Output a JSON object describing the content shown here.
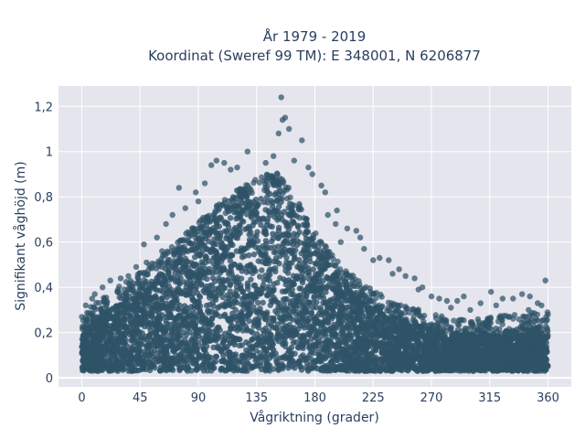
{
  "chart_data": {
    "type": "scatter",
    "title": "År 1979 - 2019",
    "subtitle": "Koordinat (Sweref 99 TM): E 348001, N 6206877",
    "xlabel": "Vågriktning (grader)",
    "ylabel": "Signifikant våghöjd (m)",
    "xlim": [
      -18,
      378
    ],
    "ylim": [
      -0.04,
      1.29
    ],
    "x_ticks": [
      0,
      45,
      90,
      135,
      180,
      225,
      270,
      315,
      360
    ],
    "x_tick_labels": [
      "0",
      "45",
      "90",
      "135",
      "180",
      "225",
      "270",
      "315",
      "360"
    ],
    "y_ticks": [
      0,
      0.2,
      0.4,
      0.6,
      0.8,
      1,
      1.2
    ],
    "y_tick_labels": [
      "0",
      "0,2",
      "0,4",
      "0,6",
      "0,8",
      "1",
      "1,2"
    ],
    "grid": true,
    "marker_color": "#2e5266",
    "background_color": "#e5e5ee",
    "density_envelope": {
      "x": [
        0,
        10,
        20,
        30,
        45,
        60,
        75,
        90,
        105,
        120,
        135,
        150,
        160,
        170,
        180,
        195,
        210,
        225,
        240,
        255,
        270,
        285,
        300,
        315,
        330,
        345,
        360
      ],
      "lower": [
        0.06,
        0.06,
        0.06,
        0.06,
        0.06,
        0.06,
        0.06,
        0.06,
        0.06,
        0.06,
        0.06,
        0.06,
        0.06,
        0.06,
        0.06,
        0.06,
        0.06,
        0.06,
        0.06,
        0.06,
        0.06,
        0.06,
        0.06,
        0.06,
        0.06,
        0.06,
        0.06
      ],
      "upper": [
        0.22,
        0.26,
        0.3,
        0.34,
        0.4,
        0.46,
        0.54,
        0.62,
        0.7,
        0.76,
        0.82,
        0.84,
        0.78,
        0.68,
        0.58,
        0.46,
        0.38,
        0.32,
        0.27,
        0.24,
        0.22,
        0.2,
        0.19,
        0.2,
        0.21,
        0.22,
        0.22
      ]
    },
    "outliers": [
      {
        "x": 154,
        "y": 1.24
      },
      {
        "x": 155,
        "y": 1.14
      },
      {
        "x": 157,
        "y": 1.15
      },
      {
        "x": 152,
        "y": 1.08
      },
      {
        "x": 160,
        "y": 1.1
      },
      {
        "x": 170,
        "y": 1.05
      },
      {
        "x": 128,
        "y": 1.0
      },
      {
        "x": 104,
        "y": 0.96
      },
      {
        "x": 110,
        "y": 0.95
      },
      {
        "x": 100,
        "y": 0.94
      },
      {
        "x": 120,
        "y": 0.93
      },
      {
        "x": 142,
        "y": 0.95
      },
      {
        "x": 164,
        "y": 0.96
      },
      {
        "x": 178,
        "y": 0.9
      },
      {
        "x": 185,
        "y": 0.85
      },
      {
        "x": 75,
        "y": 0.84
      },
      {
        "x": 88,
        "y": 0.82
      },
      {
        "x": 95,
        "y": 0.86
      },
      {
        "x": 80,
        "y": 0.75
      },
      {
        "x": 70,
        "y": 0.72
      },
      {
        "x": 65,
        "y": 0.68
      },
      {
        "x": 188,
        "y": 0.82
      },
      {
        "x": 190,
        "y": 0.72
      },
      {
        "x": 196,
        "y": 0.68
      },
      {
        "x": 205,
        "y": 0.66
      },
      {
        "x": 212,
        "y": 0.65
      },
      {
        "x": 218,
        "y": 0.57
      },
      {
        "x": 200,
        "y": 0.6
      },
      {
        "x": 230,
        "y": 0.53
      },
      {
        "x": 237,
        "y": 0.52
      },
      {
        "x": 245,
        "y": 0.48
      },
      {
        "x": 250,
        "y": 0.45
      },
      {
        "x": 257,
        "y": 0.44
      },
      {
        "x": 263,
        "y": 0.4
      },
      {
        "x": 48,
        "y": 0.59
      },
      {
        "x": 50,
        "y": 0.51
      },
      {
        "x": 42,
        "y": 0.49
      },
      {
        "x": 30,
        "y": 0.44
      },
      {
        "x": 22,
        "y": 0.43
      },
      {
        "x": 10,
        "y": 0.37
      },
      {
        "x": 3,
        "y": 0.32
      },
      {
        "x": 8,
        "y": 0.35
      },
      {
        "x": 58,
        "y": 0.62
      },
      {
        "x": 62,
        "y": 0.56
      },
      {
        "x": 270,
        "y": 0.36
      },
      {
        "x": 276,
        "y": 0.35
      },
      {
        "x": 282,
        "y": 0.34
      },
      {
        "x": 295,
        "y": 0.36
      },
      {
        "x": 308,
        "y": 0.33
      },
      {
        "x": 316,
        "y": 0.38
      },
      {
        "x": 325,
        "y": 0.35
      },
      {
        "x": 333,
        "y": 0.35
      },
      {
        "x": 340,
        "y": 0.37
      },
      {
        "x": 346,
        "y": 0.36
      },
      {
        "x": 352,
        "y": 0.33
      },
      {
        "x": 358,
        "y": 0.43
      },
      {
        "x": 355,
        "y": 0.32
      },
      {
        "x": 300,
        "y": 0.3
      },
      {
        "x": 285,
        "y": 0.31
      },
      {
        "x": 240,
        "y": 0.46
      },
      {
        "x": 225,
        "y": 0.52
      },
      {
        "x": 215,
        "y": 0.62
      },
      {
        "x": 197,
        "y": 0.74
      },
      {
        "x": 175,
        "y": 0.93
      },
      {
        "x": 148,
        "y": 0.98
      },
      {
        "x": 115,
        "y": 0.92
      },
      {
        "x": 90,
        "y": 0.78
      },
      {
        "x": 36,
        "y": 0.45
      },
      {
        "x": 16,
        "y": 0.4
      },
      {
        "x": 260,
        "y": 0.39
      },
      {
        "x": 290,
        "y": 0.34
      },
      {
        "x": 320,
        "y": 0.32
      },
      {
        "x": 345,
        "y": 0.3
      },
      {
        "x": 360,
        "y": 0.28
      }
    ]
  }
}
